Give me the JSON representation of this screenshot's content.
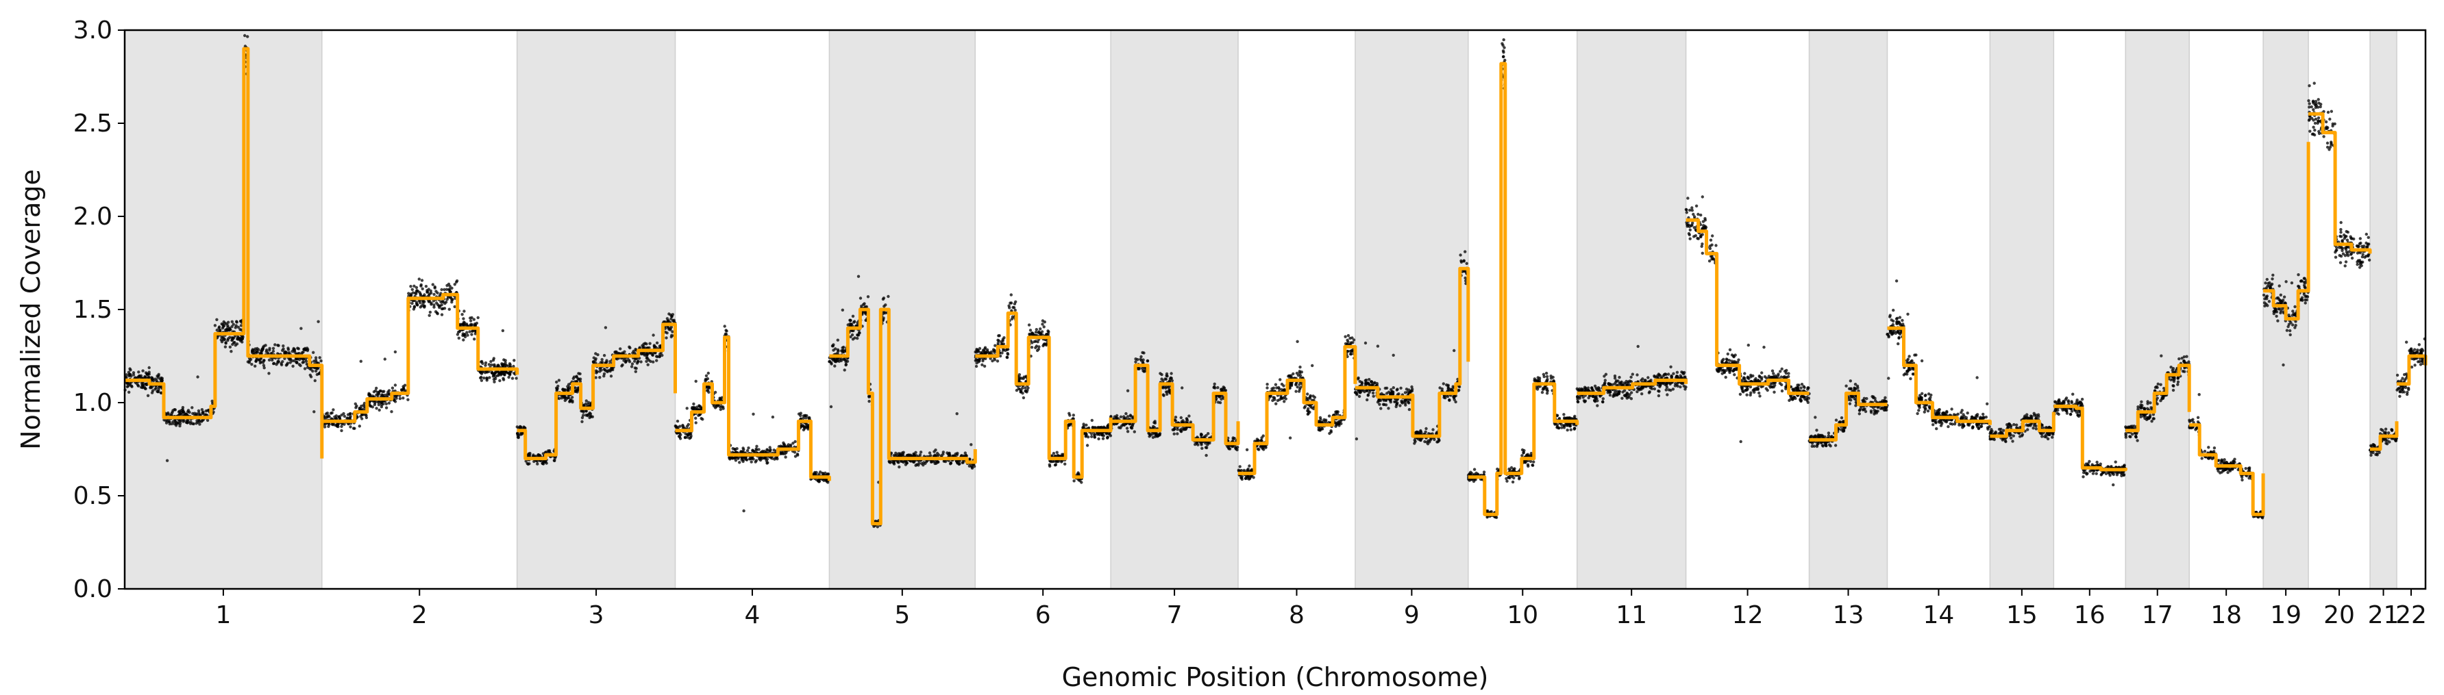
{
  "chart_data": {
    "type": "scatter",
    "title": "",
    "xlabel": "Genomic Position (Chromosome)",
    "ylabel": "Normalized Coverage",
    "ylim": [
      0,
      3.0
    ],
    "yticks": [
      "0.0",
      "0.5",
      "1.0",
      "1.5",
      "2.0",
      "2.5",
      "3.0"
    ],
    "grid": false,
    "colors": {
      "points": "#000000",
      "segments": "#FFA500",
      "shade": "#e5e5e5"
    },
    "x_units": "chromosome index (continuous genome position, each chromosome spans one unit)",
    "chromosomes": [
      {
        "label": "1",
        "start": 0.0,
        "end": 0.96,
        "shaded": true
      },
      {
        "label": "2",
        "start": 0.96,
        "end": 1.91,
        "shaded": false
      },
      {
        "label": "3",
        "start": 1.91,
        "end": 2.68,
        "shaded": true
      },
      {
        "label": "4",
        "start": 2.68,
        "end": 3.43,
        "shaded": false
      },
      {
        "label": "5",
        "start": 3.43,
        "end": 4.14,
        "shaded": true
      },
      {
        "label": "6",
        "start": 4.14,
        "end": 4.8,
        "shaded": false
      },
      {
        "label": "7",
        "start": 4.8,
        "end": 5.42,
        "shaded": true
      },
      {
        "label": "8",
        "start": 5.42,
        "end": 5.99,
        "shaded": false
      },
      {
        "label": "9",
        "start": 5.99,
        "end": 6.54,
        "shaded": true
      },
      {
        "label": "10",
        "start": 6.54,
        "end": 7.07,
        "shaded": false
      },
      {
        "label": "11",
        "start": 7.07,
        "end": 7.6,
        "shaded": true
      },
      {
        "label": "12",
        "start": 7.6,
        "end": 8.2,
        "shaded": false
      },
      {
        "label": "13",
        "start": 8.2,
        "end": 8.58,
        "shaded": true
      },
      {
        "label": "14",
        "start": 8.58,
        "end": 9.08,
        "shaded": false
      },
      {
        "label": "15",
        "start": 9.08,
        "end": 9.39,
        "shaded": true
      },
      {
        "label": "16",
        "start": 9.39,
        "end": 9.74,
        "shaded": false
      },
      {
        "label": "17",
        "start": 9.74,
        "end": 10.05,
        "shaded": true
      },
      {
        "label": "18",
        "start": 10.05,
        "end": 10.41,
        "shaded": false
      },
      {
        "label": "19",
        "start": 10.41,
        "end": 10.63,
        "shaded": true
      },
      {
        "label": "20",
        "start": 10.63,
        "end": 10.93,
        "shaded": false
      },
      {
        "label": "21",
        "start": 10.93,
        "end": 11.06,
        "shaded": true
      },
      {
        "label": "22",
        "start": 11.06,
        "end": 11.2,
        "shaded": false
      }
    ],
    "xlim": [
      0,
      11.2
    ],
    "segments": [
      {
        "chrom": "1",
        "values": [
          [
            0.0,
            1.12
          ],
          [
            0.12,
            1.1
          ],
          [
            0.19,
            0.92
          ],
          [
            0.42,
            0.98
          ],
          [
            0.44,
            1.37
          ],
          [
            0.57,
            1.37
          ],
          [
            0.58,
            2.9
          ],
          [
            0.6,
            1.25
          ],
          [
            0.9,
            1.2
          ],
          [
            0.96,
            0.7
          ]
        ]
      },
      {
        "chrom": "2",
        "values": [
          [
            0.96,
            0.9
          ],
          [
            1.12,
            0.95
          ],
          [
            1.18,
            1.02
          ],
          [
            1.3,
            1.05
          ],
          [
            1.38,
            1.56
          ],
          [
            1.55,
            1.58
          ],
          [
            1.62,
            1.4
          ],
          [
            1.72,
            1.18
          ],
          [
            1.91,
            1.15
          ]
        ]
      },
      {
        "chrom": "3",
        "values": [
          [
            1.91,
            0.85
          ],
          [
            1.95,
            0.7
          ],
          [
            2.05,
            0.72
          ],
          [
            2.1,
            1.05
          ],
          [
            2.18,
            1.1
          ],
          [
            2.22,
            0.97
          ],
          [
            2.28,
            1.2
          ],
          [
            2.38,
            1.25
          ],
          [
            2.5,
            1.28
          ],
          [
            2.62,
            1.42
          ],
          [
            2.68,
            1.05
          ]
        ]
      },
      {
        "chrom": "4",
        "values": [
          [
            2.68,
            0.85
          ],
          [
            2.76,
            0.95
          ],
          [
            2.82,
            1.1
          ],
          [
            2.86,
            1.0
          ],
          [
            2.92,
            1.35
          ],
          [
            2.94,
            0.72
          ],
          [
            3.18,
            0.75
          ],
          [
            3.28,
            0.9
          ],
          [
            3.34,
            0.6
          ],
          [
            3.43,
            0.58
          ]
        ]
      },
      {
        "chrom": "5",
        "values": [
          [
            3.43,
            1.25
          ],
          [
            3.52,
            1.4
          ],
          [
            3.58,
            1.5
          ],
          [
            3.62,
            1.05
          ],
          [
            3.64,
            0.35
          ],
          [
            3.68,
            1.5
          ],
          [
            3.72,
            0.7
          ],
          [
            4.1,
            0.68
          ],
          [
            4.14,
            0.75
          ]
        ]
      },
      {
        "chrom": "6",
        "values": [
          [
            4.14,
            1.25
          ],
          [
            4.25,
            1.3
          ],
          [
            4.3,
            1.48
          ],
          [
            4.34,
            1.1
          ],
          [
            4.4,
            1.35
          ],
          [
            4.5,
            0.7
          ],
          [
            4.58,
            0.9
          ],
          [
            4.62,
            0.6
          ],
          [
            4.66,
            0.85
          ],
          [
            4.8,
            0.92
          ]
        ]
      },
      {
        "chrom": "7",
        "values": [
          [
            4.8,
            0.9
          ],
          [
            4.92,
            1.2
          ],
          [
            4.98,
            0.85
          ],
          [
            5.04,
            1.1
          ],
          [
            5.1,
            0.88
          ],
          [
            5.2,
            0.8
          ],
          [
            5.3,
            1.05
          ],
          [
            5.36,
            0.78
          ],
          [
            5.42,
            0.9
          ]
        ]
      },
      {
        "chrom": "8",
        "values": [
          [
            5.42,
            0.62
          ],
          [
            5.5,
            0.78
          ],
          [
            5.56,
            1.05
          ],
          [
            5.66,
            1.12
          ],
          [
            5.74,
            1.0
          ],
          [
            5.8,
            0.88
          ],
          [
            5.88,
            0.92
          ],
          [
            5.94,
            1.3
          ],
          [
            5.99,
            1.1
          ]
        ]
      },
      {
        "chrom": "9",
        "values": [
          [
            5.99,
            1.08
          ],
          [
            6.1,
            1.03
          ],
          [
            6.26,
            1.04
          ],
          [
            6.27,
            0.82
          ],
          [
            6.36,
            0.82
          ],
          [
            6.4,
            1.05
          ],
          [
            6.48,
            1.1
          ],
          [
            6.5,
            1.72
          ],
          [
            6.54,
            1.22
          ]
        ]
      },
      {
        "chrom": "10",
        "values": [
          [
            6.54,
            0.6
          ],
          [
            6.62,
            0.4
          ],
          [
            6.68,
            0.62
          ],
          [
            6.7,
            2.82
          ],
          [
            6.72,
            0.62
          ],
          [
            6.8,
            0.7
          ],
          [
            6.86,
            1.1
          ],
          [
            6.96,
            0.9
          ],
          [
            7.07,
            0.88
          ]
        ]
      },
      {
        "chrom": "11",
        "values": [
          [
            7.07,
            1.05
          ],
          [
            7.2,
            1.08
          ],
          [
            7.34,
            1.1
          ],
          [
            7.45,
            1.12
          ],
          [
            7.6,
            1.1
          ]
        ]
      },
      {
        "chrom": "12",
        "values": [
          [
            7.6,
            1.98
          ],
          [
            7.66,
            1.92
          ],
          [
            7.7,
            1.8
          ],
          [
            7.75,
            1.2
          ],
          [
            7.86,
            1.1
          ],
          [
            8.0,
            1.12
          ],
          [
            8.1,
            1.05
          ],
          [
            8.2,
            1.05
          ]
        ]
      },
      {
        "chrom": "13",
        "values": [
          [
            8.2,
            0.8
          ],
          [
            8.33,
            0.88
          ],
          [
            8.38,
            1.05
          ],
          [
            8.44,
            0.99
          ],
          [
            8.58,
            0.99
          ]
        ]
      },
      {
        "chrom": "14",
        "values": [
          [
            8.58,
            1.4
          ],
          [
            8.66,
            1.2
          ],
          [
            8.72,
            1.0
          ],
          [
            8.8,
            0.92
          ],
          [
            8.92,
            0.9
          ],
          [
            9.08,
            0.88
          ]
        ]
      },
      {
        "chrom": "15",
        "values": [
          [
            9.08,
            0.82
          ],
          [
            9.16,
            0.85
          ],
          [
            9.24,
            0.9
          ],
          [
            9.32,
            0.85
          ],
          [
            9.39,
            0.95
          ]
        ]
      },
      {
        "chrom": "16",
        "values": [
          [
            9.39,
            0.98
          ],
          [
            9.5,
            0.97
          ],
          [
            9.53,
            0.65
          ],
          [
            9.62,
            0.64
          ],
          [
            9.74,
            0.65
          ]
        ]
      },
      {
        "chrom": "17",
        "values": [
          [
            9.74,
            0.85
          ],
          [
            9.8,
            0.95
          ],
          [
            9.88,
            1.05
          ],
          [
            9.94,
            1.15
          ],
          [
            10.0,
            1.2
          ],
          [
            10.05,
            0.95
          ]
        ]
      },
      {
        "chrom": "18",
        "values": [
          [
            10.05,
            0.88
          ],
          [
            10.1,
            0.72
          ],
          [
            10.18,
            0.66
          ],
          [
            10.3,
            0.62
          ],
          [
            10.36,
            0.4
          ],
          [
            10.41,
            0.62
          ]
        ]
      },
      {
        "chrom": "19",
        "values": [
          [
            10.41,
            1.6
          ],
          [
            10.46,
            1.52
          ],
          [
            10.52,
            1.45
          ],
          [
            10.58,
            1.6
          ],
          [
            10.63,
            2.4
          ]
        ]
      },
      {
        "chrom": "20",
        "values": [
          [
            10.63,
            2.55
          ],
          [
            10.7,
            2.45
          ],
          [
            10.76,
            1.85
          ],
          [
            10.84,
            1.82
          ],
          [
            10.93,
            1.8
          ]
        ]
      },
      {
        "chrom": "21",
        "values": [
          [
            10.93,
            0.75
          ],
          [
            10.98,
            0.82
          ],
          [
            11.06,
            0.9
          ]
        ]
      },
      {
        "chrom": "22",
        "values": [
          [
            11.06,
            1.1
          ],
          [
            11.12,
            1.25
          ],
          [
            11.2,
            1.2
          ]
        ]
      }
    ]
  }
}
